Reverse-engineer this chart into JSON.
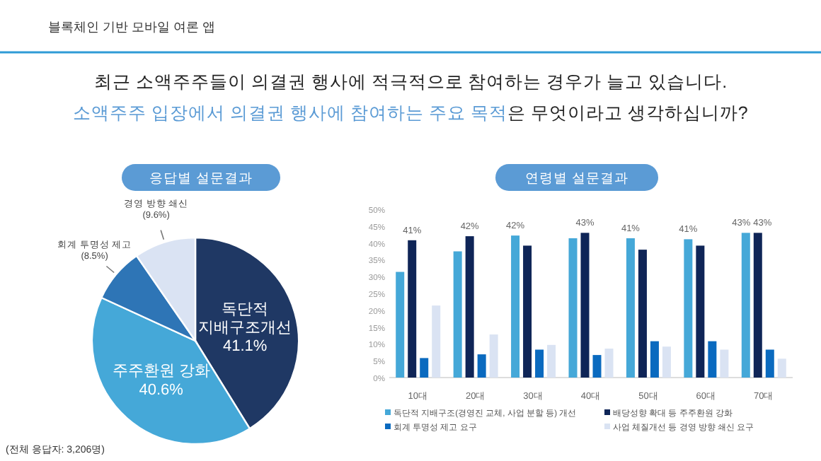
{
  "chart_data": [
    {
      "type": "pie",
      "title": "응답별 설문결과",
      "categories": [
        "독단적\n지배구조개선",
        "주주환원 강화",
        "회계 투명성 제고",
        "경영 방향 쇄신"
      ],
      "values": [
        41.1,
        40.6,
        8.5,
        9.6
      ],
      "colors": [
        "#1f3864",
        "#45a8d8",
        "#2e75b6",
        "#dae3f3"
      ],
      "value_labels": [
        "41.1%",
        "40.6%",
        "(8.5%)",
        "(9.6%)"
      ],
      "annotations": [
        "블록체인 기반 모바일 여론 앱",
        "최근 소액주주들이 의결권 행사에 적극적으로 참여하는 경우가 늘고 있습니다.",
        "소액주주 입장에서 의결권 행사에 참여하는 주요 목적",
        "은 무엇이라고 생각하십니까?",
        "(전체 응답자: 3,206명)"
      ]
    },
    {
      "type": "bar",
      "title": "연령별 설문결과",
      "categories": [
        "10대",
        "20대",
        "30대",
        "40대",
        "50대",
        "60대",
        "70대"
      ],
      "series": [
        {
          "name": "독단적 지배구조(경영진 교체, 사업 분할 등) 개선",
          "color": "#45a8d8",
          "values": [
            31.4,
            37.5,
            42.2,
            41.4,
            41.4,
            41.1,
            43
          ],
          "value_labels": [
            null,
            null,
            "42%",
            null,
            "41%",
            "41%",
            "43%"
          ]
        },
        {
          "name": "배당성향 확대 등 주주환원 강화",
          "color": "#0f2557",
          "values": [
            40.8,
            42,
            39.2,
            43,
            38,
            39.2,
            43
          ],
          "value_labels": [
            "41%",
            "42%",
            null,
            "43%",
            null,
            null,
            "43%"
          ]
        },
        {
          "name": "회계 투명성 제고 요구",
          "color": "#0a6abf",
          "values": [
            5.8,
            6.9,
            8.3,
            6.7,
            10.8,
            10.8,
            8.3
          ],
          "value_labels": [
            null,
            null,
            null,
            null,
            null,
            null,
            null
          ]
        },
        {
          "name": "사업 체질개선 등 경영 방향 쇄신 요구",
          "color": "#dae3f3",
          "values": [
            21.4,
            12.8,
            9.7,
            8.6,
            9.2,
            8.3,
            5.6
          ],
          "value_labels": [
            null,
            null,
            null,
            null,
            null,
            null,
            null
          ]
        }
      ],
      "ylim": [
        0,
        50
      ],
      "yticks": [
        {
          "value": 0,
          "label": "0%"
        },
        {
          "value": 5,
          "label": "5%"
        },
        {
          "value": 10,
          "label": "10%"
        },
        {
          "value": 15,
          "label": "15%"
        },
        {
          "value": 20,
          "label": "20%"
        },
        {
          "value": 25,
          "label": "25%"
        },
        {
          "value": 30,
          "label": "30%"
        },
        {
          "value": 35,
          "label": "35%"
        },
        {
          "value": 40,
          "label": "40%"
        },
        {
          "value": 45,
          "label": "45%"
        },
        {
          "value": 50,
          "label": "50%"
        }
      ],
      "grid": false,
      "legend": "bottom"
    }
  ]
}
